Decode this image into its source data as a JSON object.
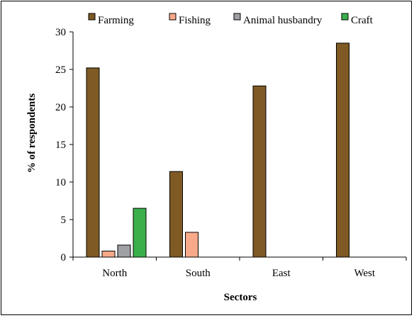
{
  "chart_data": {
    "type": "bar",
    "title": "",
    "xlabel": "Sectors",
    "ylabel": "% of respondents",
    "categories": [
      "North",
      "South",
      "East",
      "West"
    ],
    "ylim": [
      0,
      30
    ],
    "yticks": [
      0,
      5,
      10,
      15,
      20,
      25,
      30
    ],
    "grid": false,
    "legend_position": "top",
    "series": [
      {
        "name": "Farming",
        "color": "#7f5a24",
        "values": [
          25.2,
          11.4,
          22.8,
          28.5
        ]
      },
      {
        "name": "Fishing",
        "color": "#f8a98a",
        "values": [
          0.8,
          3.3,
          0,
          0
        ]
      },
      {
        "name": "Animal husbandry",
        "color": "#9ea0a4",
        "values": [
          1.6,
          0,
          0,
          0
        ]
      },
      {
        "name": "Craft",
        "color": "#3bb04a",
        "values": [
          6.5,
          0,
          0,
          0
        ]
      }
    ]
  }
}
